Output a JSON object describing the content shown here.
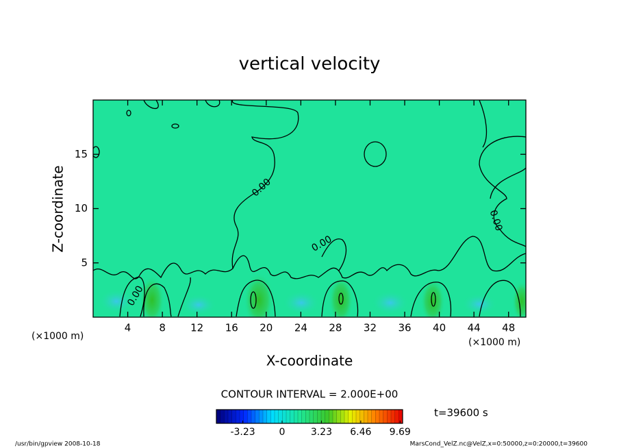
{
  "chart_data": {
    "type": "contour",
    "title": "vertical velocity",
    "x_label": "X-coordinate",
    "y_label": "Z-coordinate",
    "x_unit": "(×1000 m)",
    "x_unit_right": "(×1000 m)",
    "xlim": [
      0,
      50
    ],
    "ylim": [
      0,
      20
    ],
    "xticks": [
      4,
      8,
      12,
      16,
      20,
      24,
      28,
      32,
      36,
      40,
      44,
      48
    ],
    "yticks": [
      5,
      10,
      15
    ],
    "contour_labels": [
      "0.00",
      "0.00",
      "0.00",
      "0.00"
    ],
    "contour_interval": "CONTOUR INTERVAL = 2.000E+00",
    "time_label": "t=39600 s",
    "clim": [
      -5.4,
      9.9
    ],
    "cbar_ticks": [
      -3.23,
      0,
      3.23,
      6.46,
      9.69
    ],
    "footer_left": "/usr/bin/gpview   2008-10-18",
    "footer_right": "MarsCond_VelZ.nc@VelZ,x=0:50000,z=0:20000,t=39600"
  }
}
